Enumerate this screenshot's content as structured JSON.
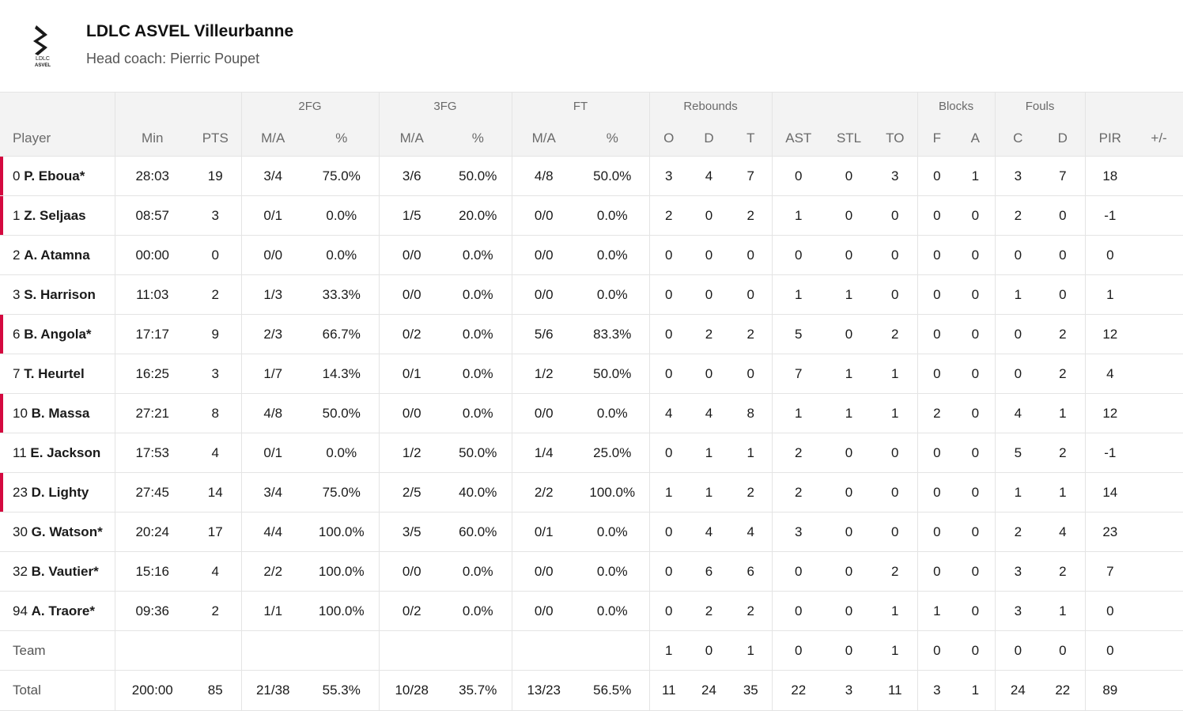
{
  "team": {
    "name": "LDLC ASVEL Villeurbanne",
    "coach": "Head coach: Pierric Poupet",
    "logo_text_top": "LDLC",
    "logo_text_bottom": "ASVEL"
  },
  "colors": {
    "accent": "#d4093f",
    "header_bg": "#f3f3f3",
    "border": "#e4e4e4"
  },
  "groups": {
    "fg2": "2FG",
    "fg3": "3FG",
    "ft": "FT",
    "reb": "Rebounds",
    "blk": "Blocks",
    "fouls": "Fouls"
  },
  "columns": {
    "player": "Player",
    "min": "Min",
    "pts": "PTS",
    "fg2_ma": "M/A",
    "fg2_pct": "%",
    "fg3_ma": "M/A",
    "fg3_pct": "%",
    "ft_ma": "M/A",
    "ft_pct": "%",
    "reb_o": "O",
    "reb_d": "D",
    "reb_t": "T",
    "ast": "AST",
    "stl": "STL",
    "to": "TO",
    "blk_f": "F",
    "blk_a": "A",
    "fouls_c": "C",
    "fouls_d": "D",
    "pir": "PIR",
    "pm": "+/-"
  },
  "players": [
    {
      "num": "0",
      "name": "P. Eboua*",
      "starter": true,
      "min": "28:03",
      "pts": "19",
      "fg2": "3/4",
      "fg2p": "75.0%",
      "fg3": "3/6",
      "fg3p": "50.0%",
      "ft": "4/8",
      "ftp": "50.0%",
      "o": "3",
      "d": "4",
      "t": "7",
      "ast": "0",
      "stl": "0",
      "to": "3",
      "bf": "0",
      "ba": "1",
      "fc": "3",
      "fd": "7",
      "pir": "18",
      "pm": ""
    },
    {
      "num": "1",
      "name": "Z. Seljaas",
      "starter": true,
      "min": "08:57",
      "pts": "3",
      "fg2": "0/1",
      "fg2p": "0.0%",
      "fg3": "1/5",
      "fg3p": "20.0%",
      "ft": "0/0",
      "ftp": "0.0%",
      "o": "2",
      "d": "0",
      "t": "2",
      "ast": "1",
      "stl": "0",
      "to": "0",
      "bf": "0",
      "ba": "0",
      "fc": "2",
      "fd": "0",
      "pir": "-1",
      "pm": ""
    },
    {
      "num": "2",
      "name": "A. Atamna",
      "starter": false,
      "min": "00:00",
      "pts": "0",
      "fg2": "0/0",
      "fg2p": "0.0%",
      "fg3": "0/0",
      "fg3p": "0.0%",
      "ft": "0/0",
      "ftp": "0.0%",
      "o": "0",
      "d": "0",
      "t": "0",
      "ast": "0",
      "stl": "0",
      "to": "0",
      "bf": "0",
      "ba": "0",
      "fc": "0",
      "fd": "0",
      "pir": "0",
      "pm": ""
    },
    {
      "num": "3",
      "name": "S. Harrison",
      "starter": false,
      "min": "11:03",
      "pts": "2",
      "fg2": "1/3",
      "fg2p": "33.3%",
      "fg3": "0/0",
      "fg3p": "0.0%",
      "ft": "0/0",
      "ftp": "0.0%",
      "o": "0",
      "d": "0",
      "t": "0",
      "ast": "1",
      "stl": "1",
      "to": "0",
      "bf": "0",
      "ba": "0",
      "fc": "1",
      "fd": "0",
      "pir": "1",
      "pm": ""
    },
    {
      "num": "6",
      "name": "B. Angola*",
      "starter": true,
      "min": "17:17",
      "pts": "9",
      "fg2": "2/3",
      "fg2p": "66.7%",
      "fg3": "0/2",
      "fg3p": "0.0%",
      "ft": "5/6",
      "ftp": "83.3%",
      "o": "0",
      "d": "2",
      "t": "2",
      "ast": "5",
      "stl": "0",
      "to": "2",
      "bf": "0",
      "ba": "0",
      "fc": "0",
      "fd": "2",
      "pir": "12",
      "pm": ""
    },
    {
      "num": "7",
      "name": "T. Heurtel",
      "starter": false,
      "min": "16:25",
      "pts": "3",
      "fg2": "1/7",
      "fg2p": "14.3%",
      "fg3": "0/1",
      "fg3p": "0.0%",
      "ft": "1/2",
      "ftp": "50.0%",
      "o": "0",
      "d": "0",
      "t": "0",
      "ast": "7",
      "stl": "1",
      "to": "1",
      "bf": "0",
      "ba": "0",
      "fc": "0",
      "fd": "2",
      "pir": "4",
      "pm": ""
    },
    {
      "num": "10",
      "name": "B. Massa",
      "starter": true,
      "min": "27:21",
      "pts": "8",
      "fg2": "4/8",
      "fg2p": "50.0%",
      "fg3": "0/0",
      "fg3p": "0.0%",
      "ft": "0/0",
      "ftp": "0.0%",
      "o": "4",
      "d": "4",
      "t": "8",
      "ast": "1",
      "stl": "1",
      "to": "1",
      "bf": "2",
      "ba": "0",
      "fc": "4",
      "fd": "1",
      "pir": "12",
      "pm": ""
    },
    {
      "num": "11",
      "name": "E. Jackson",
      "starter": false,
      "min": "17:53",
      "pts": "4",
      "fg2": "0/1",
      "fg2p": "0.0%",
      "fg3": "1/2",
      "fg3p": "50.0%",
      "ft": "1/4",
      "ftp": "25.0%",
      "o": "0",
      "d": "1",
      "t": "1",
      "ast": "2",
      "stl": "0",
      "to": "0",
      "bf": "0",
      "ba": "0",
      "fc": "5",
      "fd": "2",
      "pir": "-1",
      "pm": ""
    },
    {
      "num": "23",
      "name": "D. Lighty",
      "starter": true,
      "min": "27:45",
      "pts": "14",
      "fg2": "3/4",
      "fg2p": "75.0%",
      "fg3": "2/5",
      "fg3p": "40.0%",
      "ft": "2/2",
      "ftp": "100.0%",
      "o": "1",
      "d": "1",
      "t": "2",
      "ast": "2",
      "stl": "0",
      "to": "0",
      "bf": "0",
      "ba": "0",
      "fc": "1",
      "fd": "1",
      "pir": "14",
      "pm": ""
    },
    {
      "num": "30",
      "name": "G. Watson*",
      "starter": false,
      "min": "20:24",
      "pts": "17",
      "fg2": "4/4",
      "fg2p": "100.0%",
      "fg3": "3/5",
      "fg3p": "60.0%",
      "ft": "0/1",
      "ftp": "0.0%",
      "o": "0",
      "d": "4",
      "t": "4",
      "ast": "3",
      "stl": "0",
      "to": "0",
      "bf": "0",
      "ba": "0",
      "fc": "2",
      "fd": "4",
      "pir": "23",
      "pm": ""
    },
    {
      "num": "32",
      "name": "B. Vautier*",
      "starter": false,
      "min": "15:16",
      "pts": "4",
      "fg2": "2/2",
      "fg2p": "100.0%",
      "fg3": "0/0",
      "fg3p": "0.0%",
      "ft": "0/0",
      "ftp": "0.0%",
      "o": "0",
      "d": "6",
      "t": "6",
      "ast": "0",
      "stl": "0",
      "to": "2",
      "bf": "0",
      "ba": "0",
      "fc": "3",
      "fd": "2",
      "pir": "7",
      "pm": ""
    },
    {
      "num": "94",
      "name": "A. Traore*",
      "starter": false,
      "min": "09:36",
      "pts": "2",
      "fg2": "1/1",
      "fg2p": "100.0%",
      "fg3": "0/2",
      "fg3p": "0.0%",
      "ft": "0/0",
      "ftp": "0.0%",
      "o": "0",
      "d": "2",
      "t": "2",
      "ast": "0",
      "stl": "0",
      "to": "1",
      "bf": "1",
      "ba": "0",
      "fc": "3",
      "fd": "1",
      "pir": "0",
      "pm": ""
    }
  ],
  "team_row": {
    "label": "Team",
    "min": "",
    "pts": "",
    "fg2": "",
    "fg2p": "",
    "fg3": "",
    "fg3p": "",
    "ft": "",
    "ftp": "",
    "o": "1",
    "d": "0",
    "t": "1",
    "ast": "0",
    "stl": "0",
    "to": "1",
    "bf": "0",
    "ba": "0",
    "fc": "0",
    "fd": "0",
    "pir": "0",
    "pm": ""
  },
  "total_row": {
    "label": "Total",
    "min": "200:00",
    "pts": "85",
    "fg2": "21/38",
    "fg2p": "55.3%",
    "fg3": "10/28",
    "fg3p": "35.7%",
    "ft": "13/23",
    "ftp": "56.5%",
    "o": "11",
    "d": "24",
    "t": "35",
    "ast": "22",
    "stl": "3",
    "to": "11",
    "bf": "3",
    "ba": "1",
    "fc": "24",
    "fd": "22",
    "pir": "89",
    "pm": ""
  }
}
